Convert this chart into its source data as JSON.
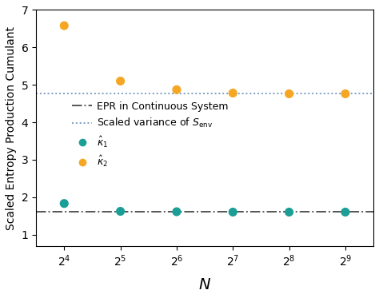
{
  "x_positions": [
    1,
    2,
    3,
    4,
    5,
    6
  ],
  "x_labels": [
    "$2^4$",
    "$2^5$",
    "$2^6$",
    "$2^7$",
    "$2^8$",
    "$2^9$"
  ],
  "kappa1_values": [
    1.83,
    1.62,
    1.61,
    1.6,
    1.6,
    1.6
  ],
  "kappa2_values": [
    6.58,
    5.1,
    4.87,
    4.78,
    4.76,
    4.76
  ],
  "epr_line": 1.6,
  "variance_line": 4.76,
  "color_kappa1": "#1a9e96",
  "color_kappa2": "#f5a623",
  "color_epr_line": "#555555",
  "color_var_line": "#7a9cc2",
  "ylabel": "Scaled Entropy Production Cumulant",
  "xlabel": "$N$",
  "ylim": [
    0.7,
    7.0
  ],
  "yticks": [
    1,
    2,
    3,
    4,
    5,
    6,
    7
  ],
  "legend_epr": "EPR in Continuous System",
  "legend_var": "Scaled variance of $S_{\\mathrm{env}}$",
  "legend_k1": "$\\hat{\\kappa}_1$",
  "legend_k2": "$\\hat{\\kappa}_2$",
  "marker_size": 8,
  "linewidth_ref": 1.4,
  "dot_linewidth": 2.5
}
